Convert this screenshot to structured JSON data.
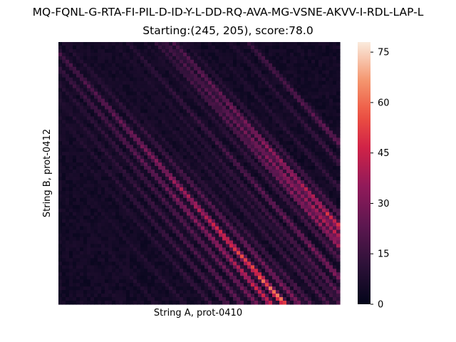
{
  "chart_data": {
    "type": "heatmap",
    "title": "MQ-FQNL-G-RTA-FI-PIL-D-ID-Y-L-DD-RQ-AVA-MG-VSNE-AKVV-I-RDL-LAP-L",
    "subtitle": "Starting:(245, 205), score:78.0",
    "xlabel": "String A, prot-0410",
    "ylabel": "String B, prot-0412",
    "colorbar": {
      "vmin": 0,
      "vmax": 78,
      "ticks": [
        0,
        15,
        30,
        45,
        60,
        75
      ],
      "tick_labels": [
        "0",
        "15",
        "30",
        "45",
        "60",
        "75"
      ],
      "colormap": "rocket"
    },
    "grid_size": {
      "rows": 205,
      "cols": 245
    },
    "start_cell": {
      "x": 245,
      "y": 205,
      "score": 78.0
    },
    "diagonal_bands": [
      {
        "offset": 165,
        "peak": 40
      },
      {
        "offset": 150,
        "peak": 24
      },
      {
        "offset": 130,
        "peak": 20
      },
      {
        "offset": 110,
        "peak": 28
      },
      {
        "offset": 100,
        "peak": 62
      },
      {
        "offset": 92,
        "peak": 55
      },
      {
        "offset": 85,
        "peak": 48
      },
      {
        "offset": 75,
        "peak": 26
      },
      {
        "offset": 60,
        "peak": 38
      },
      {
        "offset": 48,
        "peak": 26
      },
      {
        "offset": 40,
        "peak": 20
      },
      {
        "offset": 30,
        "peak": 22
      },
      {
        "offset": 15,
        "peak": 24
      },
      {
        "offset": 5,
        "peak": 40
      },
      {
        "offset": -8,
        "peak": 78
      },
      {
        "offset": -20,
        "peak": 60
      },
      {
        "offset": -32,
        "peak": 40
      },
      {
        "offset": -45,
        "peak": 34
      },
      {
        "offset": -58,
        "peak": 30
      },
      {
        "offset": -72,
        "peak": 22
      },
      {
        "offset": -95,
        "peak": 18
      },
      {
        "offset": -120,
        "peak": 16
      },
      {
        "offset": -150,
        "peak": 14
      }
    ]
  }
}
